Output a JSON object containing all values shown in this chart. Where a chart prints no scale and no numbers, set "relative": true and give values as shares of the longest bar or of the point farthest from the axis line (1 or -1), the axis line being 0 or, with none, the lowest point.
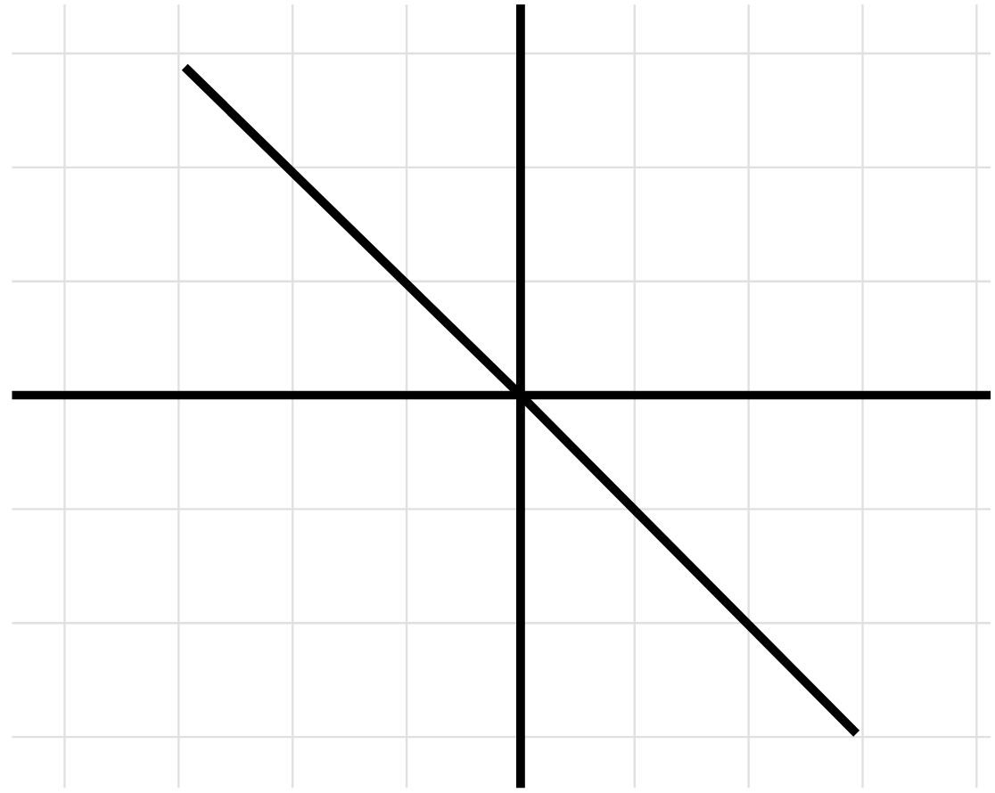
{
  "chart_data": {
    "type": "line",
    "relative": true,
    "categories": [
      null,
      null,
      null
    ],
    "series": [
      {
        "color": "#000000",
        "values": [
          0.97,
          0,
          -1
        ]
      }
    ],
    "grid": true
  }
}
